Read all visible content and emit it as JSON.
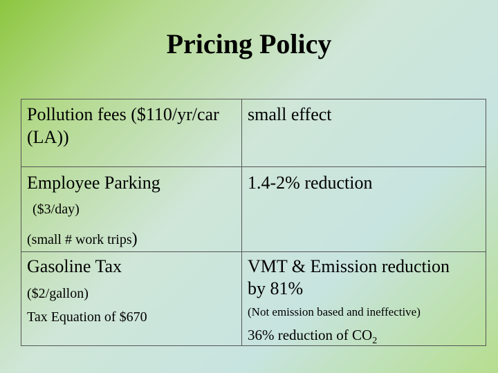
{
  "slide": {
    "title": "Pricing Policy",
    "rows": [
      {
        "policy_line1": "Pollution fees ($110/yr/car",
        "policy_line2": "(LA))",
        "effect": "small effect"
      },
      {
        "policy": "Employee Parking",
        "policy_detail1": "($3/day)",
        "policy_detail2_pre": "(small # work trips",
        "policy_detail2_post": ")",
        "effect": "1.4-2% reduction"
      },
      {
        "policy": "Gasoline Tax",
        "policy_detail1": "($2/gallon)",
        "policy_detail2": "Tax Equation of $670",
        "effect_line1": "VMT & Emission reduction",
        "effect_line2": "by 81%",
        "effect_note": "(Not emission based and ineffective)",
        "effect_co2_pre": "36% reduction of CO",
        "effect_co2_sub": "2"
      }
    ]
  }
}
